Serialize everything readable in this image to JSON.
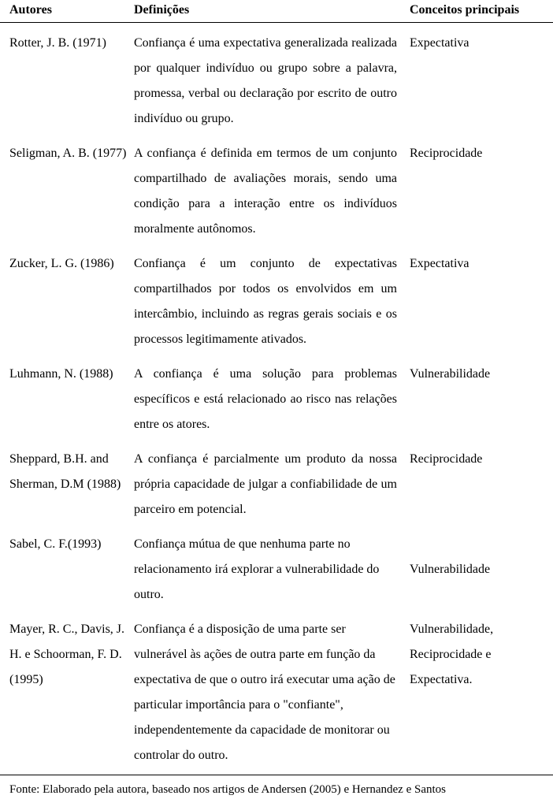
{
  "table": {
    "headers": {
      "authors": "Autores",
      "definitions": "Definições",
      "concepts": "Conceitos principais"
    },
    "rows": [
      {
        "author": "Rotter, J. B. (1971)",
        "definition": "Confiança é uma expectativa generalizada realizada por qualquer indivíduo ou grupo sobre a palavra, promessa, verbal ou declaração por escrito de outro indivíduo ou grupo.",
        "concept": "Expectativa",
        "def_align": "justify",
        "concept_pad": false
      },
      {
        "author": "Seligman, A. B. (1977)",
        "definition": "A confiança é definida em termos de um conjunto compartilhado de avaliações morais, sendo uma condição para a interação entre os indivíduos moralmente autônomos.",
        "concept": "Reciprocidade",
        "def_align": "justify",
        "concept_pad": false
      },
      {
        "author": "Zucker, L. G. (1986)",
        "definition": "Confiança é um conjunto de expectativas compartilhados por todos os envolvidos em um intercâmbio, incluindo as regras gerais sociais e os processos legitimamente ativados.",
        "concept": "Expectativa",
        "def_align": "justify",
        "concept_pad": false
      },
      {
        "author": "Luhmann, N. (1988)",
        "definition": "A confiança é uma solução para problemas específicos e está relacionado ao risco nas relações entre os atores.",
        "concept": "Vulnerabilidade",
        "def_align": "justify",
        "concept_pad": false
      },
      {
        "author": "Sheppard, B.H. and Sherman, D.M (1988)",
        "definition": "A confiança é parcialmente um produto da nossa própria capacidade de julgar a confiabilidade de um parceiro em potencial.",
        "concept": "Reciprocidade",
        "def_align": "justify",
        "concept_pad": false
      },
      {
        "author": "Sabel, C. F.(1993)",
        "definition": "Confiança mútua de que nenhuma parte no relacionamento irá explorar a vulnerabilidade do outro.",
        "concept": "Vulnerabilidade",
        "def_align": "left",
        "concept_pad": true
      },
      {
        "author": "Mayer, R. C., Davis, J. H. e Schoorman, F. D. (1995)",
        "definition": "Confiança é a disposição de uma parte ser vulnerável às ações de outra parte em função da expectativa de que o outro irá executar uma ação de particular importância para o \"confiante\", independentemente da capacidade de monitorar ou controlar do outro.",
        "concept": "Vulnerabilidade, Reciprocidade e Expectativa.",
        "def_align": "left",
        "concept_pad": false
      }
    ]
  },
  "footnote": "Fonte: Elaborado pela autora, baseado nos artigos de Andersen (2005) e Hernandez e Santos",
  "style": {
    "text_color": "#000000",
    "background_color": "#ffffff",
    "border_color": "#000000",
    "font_family": "Times New Roman",
    "header_fontsize": 16,
    "body_fontsize": 16,
    "footnote_fontsize": 15,
    "col_widths": {
      "authors": 170,
      "def": 350
    }
  }
}
